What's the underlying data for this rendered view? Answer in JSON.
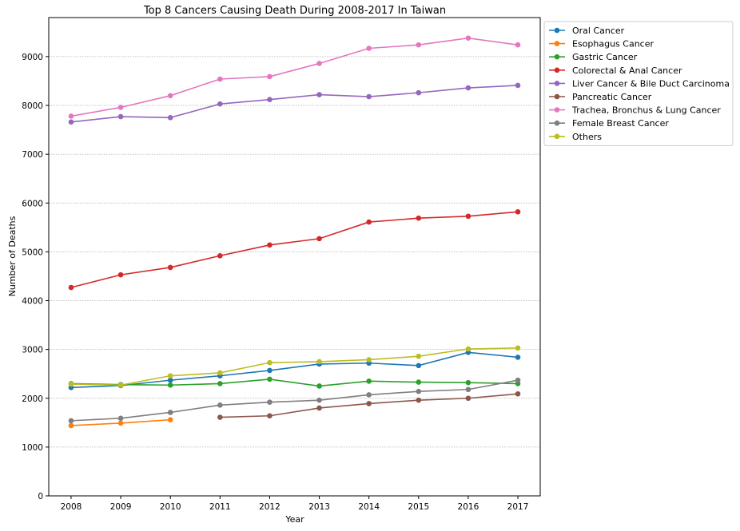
{
  "chart_data": {
    "type": "line",
    "title": "Top 8 Cancers Causing Death During 2008-2017 In Taiwan",
    "xlabel": "Year",
    "ylabel": "Number of Deaths",
    "x": [
      2008,
      2009,
      2010,
      2011,
      2012,
      2013,
      2014,
      2015,
      2016,
      2017
    ],
    "xlim": [
      2007.55,
      2017.45
    ],
    "ylim": [
      0,
      9800
    ],
    "yticks": [
      0,
      1000,
      2000,
      3000,
      4000,
      5000,
      6000,
      7000,
      8000,
      9000
    ],
    "grid": "horizontal",
    "legend_position": "outside-top-right",
    "series": [
      {
        "name": "Oral Cancer",
        "color": "#1f77b4",
        "values": [
          2220,
          2260,
          2370,
          2460,
          2570,
          2700,
          2720,
          2670,
          2940,
          2840
        ]
      },
      {
        "name": "Esophagus Cancer",
        "color": "#ff7f0e",
        "values": [
          1440,
          1490,
          1560,
          null,
          null,
          null,
          null,
          null,
          null,
          null
        ]
      },
      {
        "name": "Gastric Cancer",
        "color": "#2ca02c",
        "values": [
          2300,
          2280,
          2270,
          2300,
          2390,
          2250,
          2350,
          2330,
          2320,
          2300
        ]
      },
      {
        "name": "Colorectal & Anal Cancer",
        "color": "#d62728",
        "values": [
          4270,
          4530,
          4680,
          4920,
          5140,
          5270,
          5610,
          5690,
          5730,
          5820
        ]
      },
      {
        "name": "Liver Cancer & Bile Duct Carcinoma",
        "color": "#9467bd",
        "values": [
          7660,
          7770,
          7750,
          8030,
          8120,
          8220,
          8180,
          8260,
          8360,
          8410
        ]
      },
      {
        "name": "Pancreatic Cancer",
        "color": "#8c564b",
        "values": [
          null,
          null,
          null,
          1610,
          1640,
          1800,
          1890,
          1960,
          2000,
          2090
        ]
      },
      {
        "name": "Trachea, Bronchus & Lung Cancer",
        "color": "#e377c2",
        "values": [
          7780,
          7960,
          8200,
          8540,
          8590,
          8860,
          9170,
          9240,
          9380,
          9240
        ]
      },
      {
        "name": "Female Breast Cancer",
        "color": "#7f7f7f",
        "values": [
          1540,
          1590,
          1710,
          1860,
          1920,
          1960,
          2070,
          2140,
          2180,
          2370
        ]
      },
      {
        "name": "Others",
        "color": "#bcbd22",
        "values": [
          2290,
          2270,
          2460,
          2520,
          2730,
          2750,
          2790,
          2860,
          3010,
          3030
        ]
      }
    ]
  }
}
